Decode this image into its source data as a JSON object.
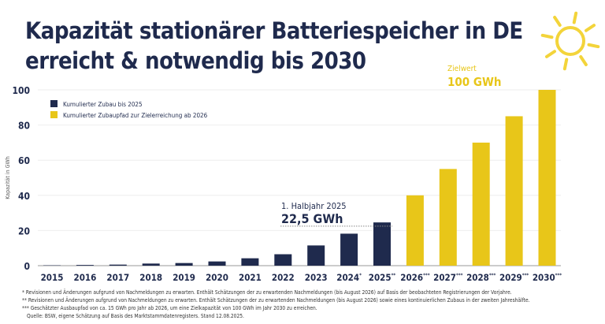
{
  "title_lines": [
    "Kapazität stationärer Batteriespeicher in DE",
    "erreicht & notwendig bis 2030"
  ],
  "colors": {
    "navy": "#1f2a4d",
    "yellow": "#e8c619",
    "sun": "#f3d43a"
  },
  "chart_data": {
    "type": "bar",
    "ylabel": "Kapazität in GWh",
    "ylim": [
      0,
      100
    ],
    "yticks": [
      0,
      20,
      40,
      60,
      80,
      100
    ],
    "grid": true,
    "legend_position": "top-left",
    "categories": [
      "2015",
      "2016",
      "2017",
      "2018",
      "2019",
      "2020",
      "2021",
      "2022",
      "2023",
      "2024*",
      "2025**",
      "2026***",
      "2027***",
      "2028***",
      "2029***",
      "2030***"
    ],
    "series": [
      {
        "name": "Kumulierter Zubau bis 2025",
        "color": "#1f2a4d",
        "values": [
          0.2,
          0.4,
          0.6,
          1.2,
          1.5,
          2.4,
          4.2,
          6.5,
          11.5,
          18.2,
          24.6,
          null,
          null,
          null,
          null,
          null
        ]
      },
      {
        "name": "Kumulierter Zubaupfad zur Zielerreichung ab 2026",
        "color": "#e8c619",
        "values": [
          null,
          null,
          null,
          null,
          null,
          null,
          null,
          null,
          null,
          null,
          null,
          40,
          55,
          70,
          85,
          100
        ]
      }
    ],
    "annotations": [
      {
        "label": "1. Halbjahr 2025",
        "value_text": "22,5 GWh",
        "y": 22.5
      },
      {
        "label": "Zielwert",
        "value_text": "100 GWh",
        "y": 100
      }
    ]
  },
  "footnotes": [
    "*  Revisionen und Änderungen aufgrund von Nachmeldungen zu erwarten. Enthält Schätzungen der zu erwartenden Nachmeldungen (bis August 2026) auf Basis der beobachteten Registrierungen der Vorjahre.",
    "** Revisionen und Änderungen aufgrund von Nachmeldungen zu erwarten. Enthält Schätzungen der zu erwartenden Nachmeldungen (bis August 2026) sowie eines kontinuierlichen Zubaus in der zweiten Jahreshälfte.",
    "*** Geschätzter Ausbaupfad von ca. 15 GWh pro Jahr ab 2026, um eine Zielkapazität von 100 GWh im Jahr 2030 zu erreichen.",
    "Quelle: BSW, eigene Schätzung auf Basis des Marktstammdatenregisters. Stand 12.08.2025."
  ]
}
